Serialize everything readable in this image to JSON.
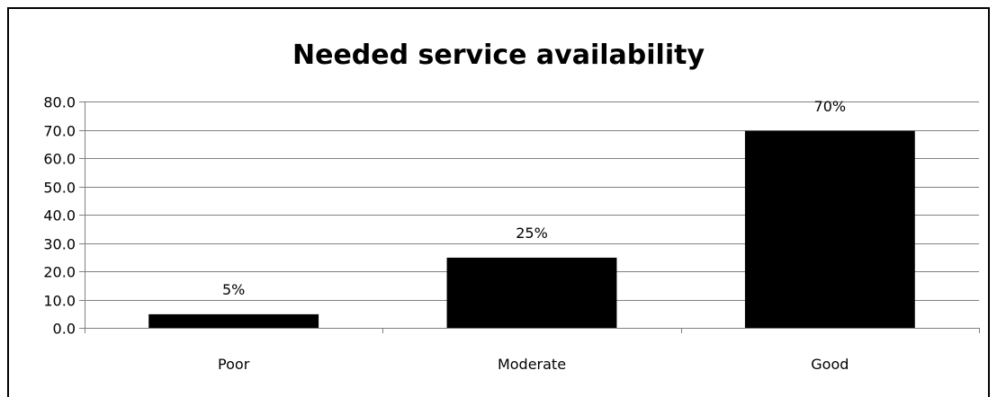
{
  "chart_data": {
    "type": "bar",
    "title": "Needed service availability",
    "xlabel": "",
    "ylabel": "",
    "categories": [
      "Poor",
      "Moderate",
      "Good"
    ],
    "values": [
      4.8,
      24.8,
      69.6
    ],
    "data_labels": [
      "5%",
      "25%",
      "70%"
    ],
    "ylim": [
      0,
      80
    ],
    "y_ticks": [
      0,
      10,
      20,
      30,
      40,
      50,
      60,
      70,
      80
    ],
    "y_tick_labels": [
      "0.0",
      "10.0",
      "20.0",
      "30.0",
      "40.0",
      "50.0",
      "60.0",
      "70.0",
      "80.0"
    ],
    "grid": true,
    "legend": "none",
    "colors": {
      "bar": "#000000",
      "grid": "#808080",
      "axis": "#808080"
    }
  }
}
